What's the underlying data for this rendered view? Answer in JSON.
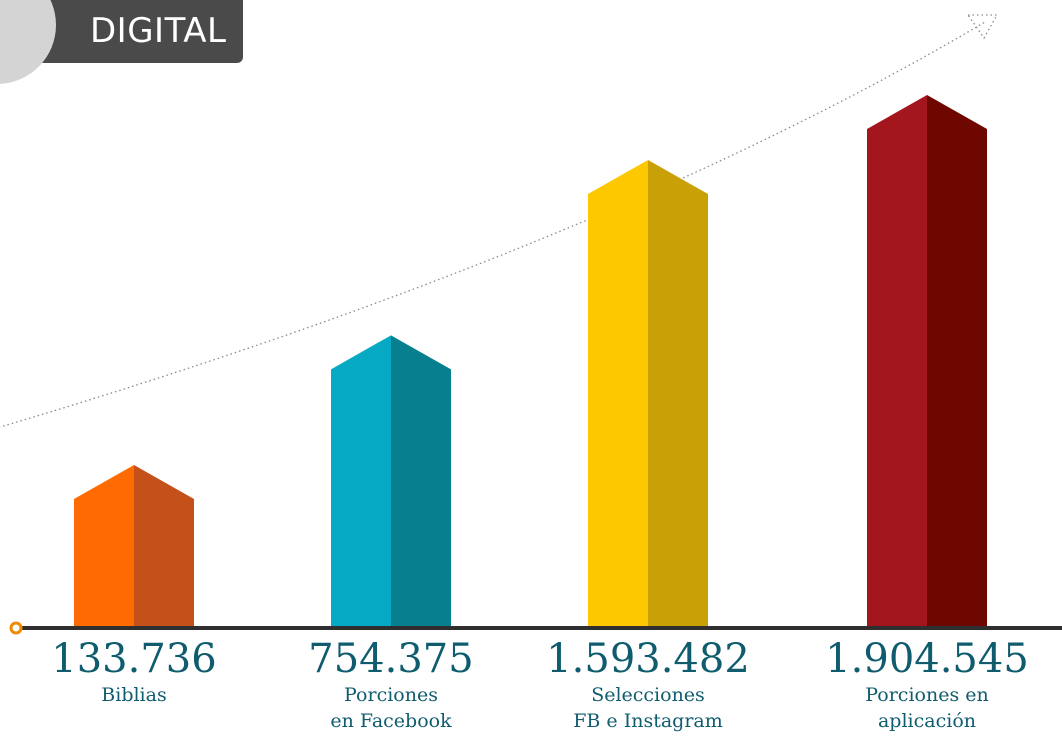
{
  "header": {
    "title": "DIGITAL",
    "icon": "tablet-icon"
  },
  "chart_data": {
    "type": "bar",
    "categories": [
      "Biblias",
      "Porciones en Facebook",
      "Selecciones FB e Instagram",
      "Porciones en aplicación"
    ],
    "values": [
      133736,
      754375,
      1593482,
      1904545
    ],
    "value_labels": [
      "133.736",
      "754.375",
      "1.593.482",
      "1.904.545"
    ],
    "label_lines": [
      [
        "Biblias"
      ],
      [
        "Porciones",
        "en Facebook"
      ],
      [
        "Selecciones",
        "FB e Instagram"
      ],
      [
        "Porciones en",
        "aplicación"
      ]
    ],
    "colors": [
      {
        "front": "#ff6b00",
        "side": "#c4511a"
      },
      {
        "front": "#05a9c3",
        "side": "#077f8e"
      },
      {
        "front": "#fdc800",
        "side": "#c9a006"
      },
      {
        "front": "#a3161e",
        "side": "#6e0700"
      }
    ],
    "bar_style": "3d-arrow",
    "trend_arrow": "dotted",
    "grid": false,
    "legend": "none"
  }
}
